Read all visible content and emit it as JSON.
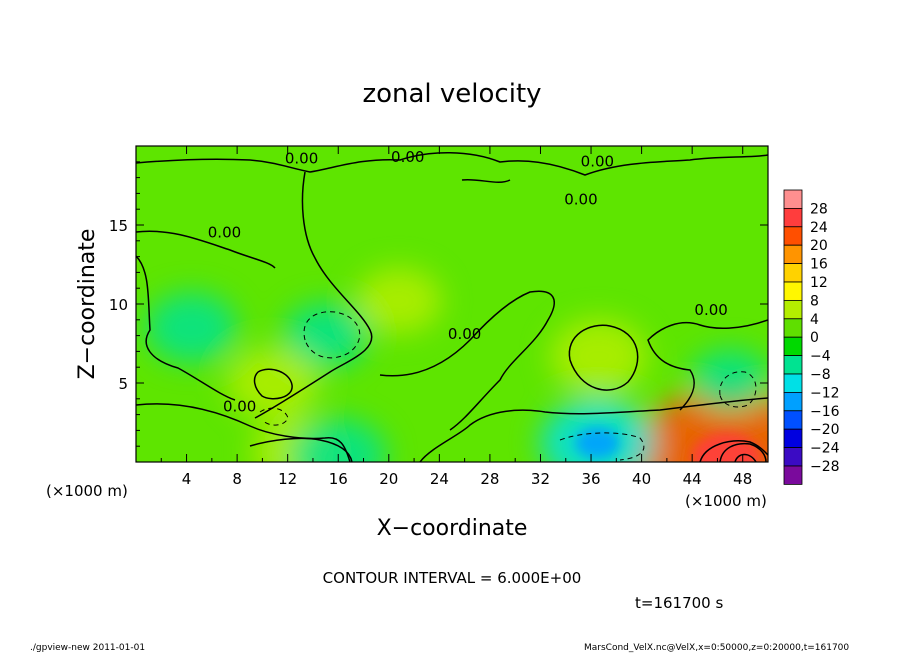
{
  "chart_data": {
    "type": "heatmap",
    "title": "zonal velocity",
    "xlabel": "X−coordinate",
    "ylabel": "Z−coordinate",
    "x_unit_left": "(×1000 m)",
    "x_unit_right": "(×1000 m)",
    "xlim": [
      0,
      50
    ],
    "ylim": [
      0,
      20
    ],
    "x_ticks": [
      "4",
      "8",
      "12",
      "16",
      "20",
      "24",
      "28",
      "32",
      "36",
      "40",
      "44",
      "48"
    ],
    "x_tick_values": [
      4,
      8,
      12,
      16,
      20,
      24,
      28,
      32,
      36,
      40,
      44,
      48
    ],
    "y_ticks": [
      "5",
      "10",
      "15"
    ],
    "y_tick_values": [
      5,
      10,
      15
    ],
    "contour_interval_text": "CONTOUR INTERVAL = 6.000E+00",
    "time_text": "t=161700 s",
    "contour_labels": [
      {
        "text": "0.00",
        "x": 13.1,
        "z": 18.9
      },
      {
        "text": "0.00",
        "x": 21.5,
        "z": 19.0
      },
      {
        "text": "0.00",
        "x": 36.5,
        "z": 18.7
      },
      {
        "text": "0.00",
        "x": 35.2,
        "z": 16.3
      },
      {
        "text": "0.00",
        "x": 7.0,
        "z": 14.2
      },
      {
        "text": "0.00",
        "x": 26.0,
        "z": 7.8
      },
      {
        "text": "0.00",
        "x": 45.5,
        "z": 9.3
      },
      {
        "text": "0.00",
        "x": 8.2,
        "z": 3.2
      }
    ],
    "colorbar": {
      "levels": [
        "28",
        "24",
        "20",
        "16",
        "12",
        "8",
        "4",
        "0",
        "−4",
        "−8",
        "−12",
        "−16",
        "−20",
        "−24",
        "−28"
      ],
      "colors": [
        "#ff8f8f",
        "#ff3d3d",
        "#ff4f00",
        "#ff9400",
        "#ffd200",
        "#fff700",
        "#b4ee00",
        "#5fdf00",
        "#00d900",
        "#00e391",
        "#00e0e6",
        "#00a0ff",
        "#0050ff",
        "#0000e0",
        "#3b0bc4",
        "#7a0a9c"
      ]
    },
    "features": [
      {
        "x": 46.7,
        "z": 0.3,
        "value": 22,
        "note": "strong positive core bottom right"
      },
      {
        "x": 36.6,
        "z": 6.7,
        "value": 7
      },
      {
        "x": 12.8,
        "z": 0.6,
        "value": 6
      },
      {
        "x": 20.8,
        "z": 10.2,
        "value": 5
      },
      {
        "x": 15.0,
        "z": 8.0,
        "value": -5
      },
      {
        "x": 36.5,
        "z": 1.2,
        "value": -10
      },
      {
        "x": 4.4,
        "z": 8.5,
        "value": -6
      },
      {
        "x": 47.0,
        "z": 5.2,
        "value": -4
      },
      {
        "x": 10.8,
        "z": 5.0,
        "value": 6
      },
      {
        "x": 16.0,
        "z": 0.4,
        "value": -7
      }
    ]
  },
  "footer": {
    "left": "./gpview-new  2011-01-01",
    "right": "MarsCond_VelX.nc@VelX,x=0:50000,z=0:20000,t=161700"
  }
}
